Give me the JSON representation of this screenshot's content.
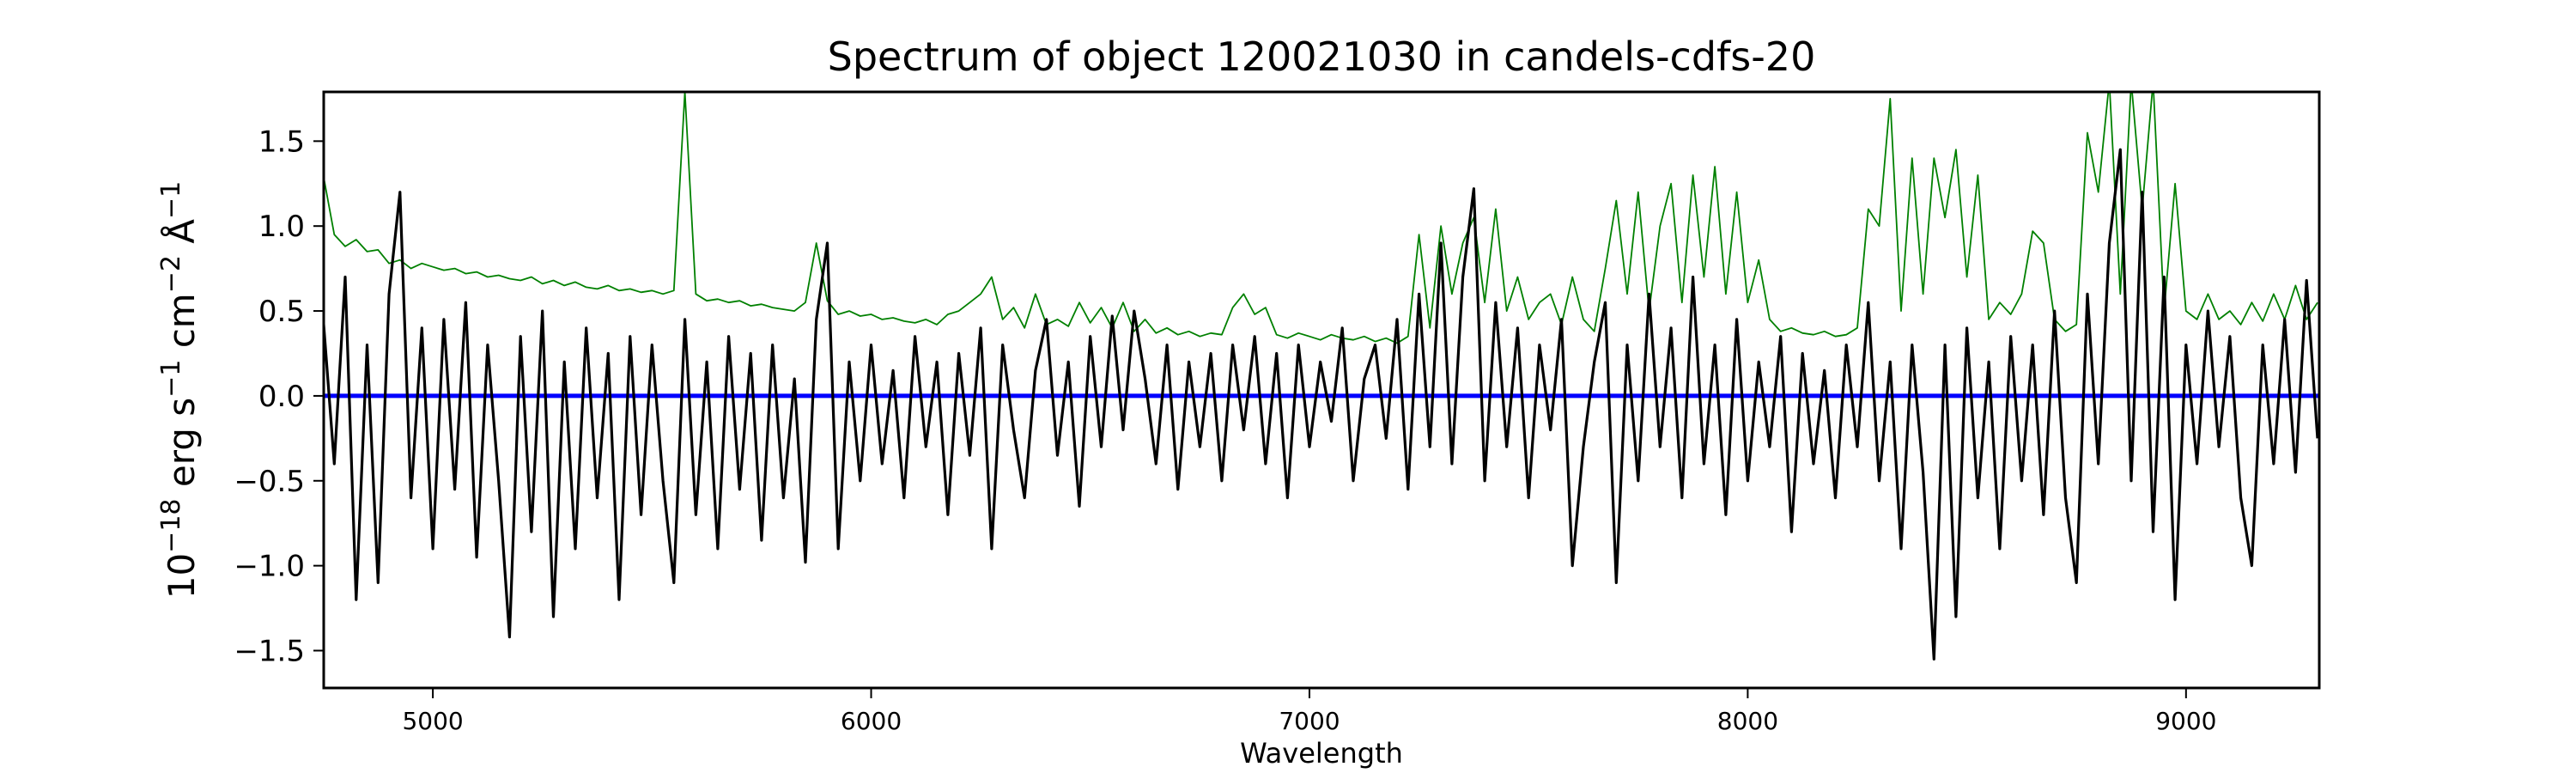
{
  "chart_data": {
    "type": "line",
    "title": "Spectrum of object 120021030 in candels-cdfs-20",
    "xlabel": "Wavelength",
    "ylabel": {
      "base": "10",
      "exp1": "−18",
      "unit1": " erg s",
      "exp2": "−1",
      "unit2": " cm",
      "exp3": "−2",
      "unit3": " Å",
      "exp4": "−1"
    },
    "xlim": [
      4751,
      9304
    ],
    "ylim": [
      -1.72,
      1.79
    ],
    "xticks": [
      5000,
      6000,
      7000,
      8000,
      9000
    ],
    "xtick_labels": [
      "5000",
      "6000",
      "7000",
      "8000",
      "9000"
    ],
    "yticks": [
      -1.5,
      -1.0,
      -0.5,
      0.0,
      0.5,
      1.0,
      1.5
    ],
    "ytick_labels": [
      "−1.5",
      "−1.0",
      "−0.5",
      "0.0",
      "0.5",
      "1.0",
      "1.5"
    ],
    "grid": false,
    "x_start": 4750,
    "x_step": 25,
    "series": [
      {
        "color": "#008000",
        "values": [
          1.3,
          0.95,
          0.88,
          0.92,
          0.85,
          0.86,
          0.78,
          0.8,
          0.75,
          0.78,
          0.76,
          0.74,
          0.75,
          0.72,
          0.73,
          0.7,
          0.71,
          0.69,
          0.68,
          0.7,
          0.66,
          0.68,
          0.65,
          0.67,
          0.64,
          0.63,
          0.65,
          0.62,
          0.63,
          0.61,
          0.62,
          0.6,
          0.62,
          1.79,
          0.6,
          0.56,
          0.57,
          0.55,
          0.56,
          0.53,
          0.54,
          0.52,
          0.51,
          0.5,
          0.55,
          0.9,
          0.56,
          0.48,
          0.5,
          0.47,
          0.48,
          0.45,
          0.46,
          0.44,
          0.43,
          0.45,
          0.42,
          0.48,
          0.5,
          0.55,
          0.6,
          0.7,
          0.45,
          0.52,
          0.4,
          0.6,
          0.42,
          0.45,
          0.41,
          0.55,
          0.43,
          0.52,
          0.4,
          0.55,
          0.38,
          0.45,
          0.37,
          0.4,
          0.36,
          0.38,
          0.35,
          0.37,
          0.36,
          0.52,
          0.6,
          0.48,
          0.52,
          0.36,
          0.34,
          0.37,
          0.35,
          0.33,
          0.36,
          0.34,
          0.33,
          0.35,
          0.32,
          0.34,
          0.31,
          0.35,
          0.95,
          0.4,
          1.0,
          0.6,
          0.9,
          1.05,
          0.55,
          1.1,
          0.5,
          0.7,
          0.45,
          0.55,
          0.6,
          0.42,
          0.7,
          0.45,
          0.38,
          0.75,
          1.15,
          0.6,
          1.2,
          0.5,
          1.0,
          1.25,
          0.55,
          1.3,
          0.7,
          1.35,
          0.6,
          1.2,
          0.55,
          0.8,
          0.45,
          0.38,
          0.4,
          0.37,
          0.36,
          0.38,
          0.35,
          0.36,
          0.4,
          1.1,
          1.0,
          1.75,
          0.5,
          1.4,
          0.6,
          1.4,
          1.05,
          1.45,
          0.7,
          1.3,
          0.45,
          0.55,
          0.48,
          0.6,
          0.97,
          0.9,
          0.45,
          0.38,
          0.42,
          1.55,
          1.2,
          1.85,
          0.6,
          1.85,
          1.1,
          1.85,
          0.5,
          1.25,
          0.5,
          0.45,
          0.6,
          0.45,
          0.5,
          0.42,
          0.55,
          0.44,
          0.6,
          0.45,
          0.65,
          0.45,
          0.55
        ]
      },
      {
        "color": "#0000ff",
        "values_constant": 0.0
      },
      {
        "color": "#000000",
        "values": [
          0.45,
          -0.4,
          0.7,
          -1.2,
          0.3,
          -1.1,
          0.6,
          1.2,
          -0.6,
          0.4,
          -0.9,
          0.45,
          -0.55,
          0.55,
          -0.95,
          0.3,
          -0.5,
          -1.42,
          0.35,
          -0.8,
          0.5,
          -1.3,
          0.2,
          -0.9,
          0.4,
          -0.6,
          0.25,
          -1.2,
          0.35,
          -0.7,
          0.3,
          -0.5,
          -1.1,
          0.45,
          -0.7,
          0.2,
          -0.9,
          0.35,
          -0.55,
          0.25,
          -0.85,
          0.3,
          -0.6,
          0.1,
          -0.98,
          0.45,
          0.9,
          -0.9,
          0.2,
          -0.5,
          0.3,
          -0.4,
          0.15,
          -0.6,
          0.35,
          -0.3,
          0.2,
          -0.7,
          0.25,
          -0.35,
          0.4,
          -0.9,
          0.3,
          -0.2,
          -0.6,
          0.15,
          0.45,
          -0.35,
          0.2,
          -0.65,
          0.35,
          -0.3,
          0.47,
          -0.2,
          0.5,
          0.1,
          -0.4,
          0.3,
          -0.55,
          0.2,
          -0.3,
          0.25,
          -0.5,
          0.3,
          -0.2,
          0.35,
          -0.4,
          0.25,
          -0.6,
          0.3,
          -0.3,
          0.2,
          -0.15,
          0.4,
          -0.5,
          0.1,
          0.3,
          -0.25,
          0.45,
          -0.55,
          0.6,
          -0.3,
          0.9,
          -0.4,
          0.7,
          1.22,
          -0.5,
          0.55,
          -0.3,
          0.4,
          -0.6,
          0.3,
          -0.2,
          0.45,
          -1.0,
          -0.3,
          0.2,
          0.55,
          -1.1,
          0.3,
          -0.5,
          0.6,
          -0.3,
          0.4,
          -0.6,
          0.7,
          -0.4,
          0.3,
          -0.7,
          0.45,
          -0.5,
          0.2,
          -0.3,
          0.35,
          -0.8,
          0.25,
          -0.4,
          0.15,
          -0.6,
          0.3,
          -0.3,
          0.55,
          -0.5,
          0.2,
          -0.9,
          0.3,
          -0.45,
          -1.55,
          0.3,
          -1.3,
          0.4,
          -0.6,
          0.2,
          -0.9,
          0.35,
          -0.5,
          0.3,
          -0.7,
          0.5,
          -0.6,
          -1.1,
          0.6,
          -0.4,
          0.9,
          1.45,
          -0.5,
          1.2,
          -0.8,
          0.7,
          -1.2,
          0.3,
          -0.4,
          0.5,
          -0.3,
          0.35,
          -0.6,
          -1.0,
          0.3,
          -0.4,
          0.45,
          -0.45,
          0.68,
          -0.25
        ]
      }
    ]
  }
}
